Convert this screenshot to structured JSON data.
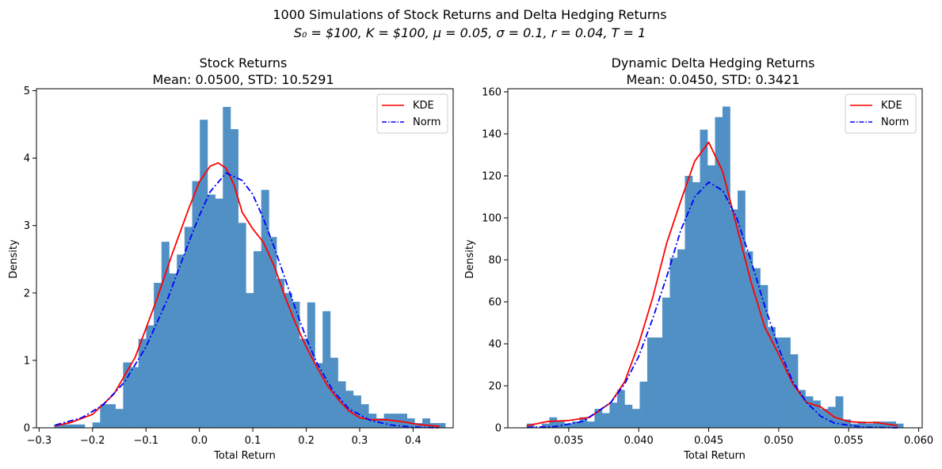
{
  "figure": {
    "suptitle_line1": "1000 Simulations of Stock Returns and Delta Hedging Returns",
    "suptitle_line2": "S₀ = $100, K = $100, μ = 0.05, σ = 0.1, r = 0.04, T = 1"
  },
  "colors": {
    "bars": "#4c8ec3",
    "kde": "#ff0000",
    "norm": "#0000ff"
  },
  "chart_data": [
    {
      "type": "bar",
      "title_line1": "Stock Returns",
      "title_line2": "Mean: 0.0500, STD: 10.5291",
      "xlabel": "Total Return",
      "ylabel": "Density",
      "xlim": [
        -0.305,
        0.475
      ],
      "ylim": [
        0,
        5.03
      ],
      "xticks": [
        -0.3,
        -0.2,
        -0.1,
        0.0,
        0.1,
        0.2,
        0.3,
        0.4
      ],
      "xtick_labels": [
        "−0.3",
        "−0.2",
        "−0.1",
        "0.0",
        "0.1",
        "0.2",
        "0.3",
        "0.4"
      ],
      "yticks": [
        0,
        1,
        2,
        3,
        4,
        5
      ],
      "ytick_labels": [
        "0",
        "1",
        "2",
        "3",
        "4",
        "5"
      ],
      "legend": [
        "KDE",
        "Norm"
      ],
      "legend_position": "top-right",
      "histogram": {
        "bin_start": -0.272,
        "bin_width": 0.01436,
        "values": [
          0.05,
          0.05,
          0.05,
          0.05,
          0.0,
          0.08,
          0.35,
          0.35,
          0.28,
          0.97,
          0.9,
          1.32,
          1.52,
          2.15,
          2.76,
          2.29,
          2.57,
          2.98,
          3.66,
          4.57,
          3.46,
          3.4,
          4.76,
          4.43,
          3.04,
          2.0,
          2.62,
          3.53,
          2.83,
          2.21,
          2.0,
          1.87,
          1.32,
          1.86,
          0.96,
          1.73,
          1.04,
          0.69,
          0.55,
          0.48,
          0.35,
          0.21,
          0.14,
          0.21,
          0.21,
          0.21,
          0.14,
          0.07,
          0.14,
          0.07,
          0.07
        ]
      },
      "series": [
        {
          "name": "KDE",
          "style": "solid",
          "x": [
            -0.27,
            -0.24,
            -0.2,
            -0.16,
            -0.12,
            -0.08,
            -0.05,
            -0.02,
            0.0,
            0.02,
            0.035,
            0.05,
            0.065,
            0.08,
            0.1,
            0.12,
            0.14,
            0.16,
            0.18,
            0.2,
            0.22,
            0.24,
            0.26,
            0.28,
            0.3,
            0.32,
            0.35,
            0.38,
            0.41,
            0.45
          ],
          "y": [
            0.03,
            0.08,
            0.2,
            0.5,
            1.05,
            1.9,
            2.6,
            3.25,
            3.65,
            3.88,
            3.93,
            3.85,
            3.6,
            3.2,
            2.95,
            2.75,
            2.4,
            1.95,
            1.55,
            1.2,
            0.9,
            0.62,
            0.42,
            0.25,
            0.15,
            0.12,
            0.12,
            0.09,
            0.05,
            0.02
          ]
        },
        {
          "name": "Norm",
          "style": "dashdot",
          "x": [
            -0.27,
            -0.22,
            -0.18,
            -0.14,
            -0.1,
            -0.06,
            -0.02,
            0.0,
            0.02,
            0.05,
            0.08,
            0.1,
            0.12,
            0.14,
            0.16,
            0.18,
            0.2,
            0.22,
            0.25,
            0.28,
            0.32,
            0.36,
            0.4,
            0.45
          ],
          "y": [
            0.04,
            0.15,
            0.34,
            0.68,
            1.2,
            1.9,
            2.75,
            3.15,
            3.5,
            3.78,
            3.67,
            3.46,
            3.1,
            2.68,
            2.22,
            1.76,
            1.33,
            0.96,
            0.55,
            0.28,
            0.11,
            0.04,
            0.01,
            0.0
          ]
        }
      ]
    },
    {
      "type": "bar",
      "title_line1": "Dynamic Delta Hedging Returns",
      "title_line2": "Mean: 0.0450, STD: 0.3421",
      "xlabel": "Total Return",
      "ylabel": "Density",
      "xlim": [
        0.03065,
        0.06025
      ],
      "ylim": [
        0,
        161.5
      ],
      "xticks": [
        0.035,
        0.04,
        0.045,
        0.05,
        0.055,
        0.06
      ],
      "xtick_labels": [
        "0.035",
        "0.040",
        "0.045",
        "0.050",
        "0.055",
        "0.060"
      ],
      "yticks": [
        0,
        20,
        40,
        60,
        80,
        100,
        120,
        140,
        160
      ],
      "ytick_labels": [
        "0",
        "20",
        "40",
        "60",
        "80",
        "100",
        "120",
        "140",
        "160"
      ],
      "legend": [
        "KDE",
        "Norm"
      ],
      "legend_position": "top-right",
      "histogram": {
        "bin_start": 0.032,
        "bin_width": 0.000538,
        "values": [
          2,
          0,
          2,
          5,
          3,
          2,
          3,
          5,
          3,
          9,
          7,
          12,
          18,
          11,
          9,
          22,
          43,
          43,
          62,
          81,
          85,
          120,
          117,
          142,
          125,
          148,
          153,
          104,
          113,
          84,
          76,
          68,
          48,
          43,
          43,
          35,
          18,
          15,
          13,
          9,
          10,
          15,
          4,
          2,
          3,
          2,
          3,
          3,
          3,
          2
        ]
      },
      "series": [
        {
          "name": "KDE",
          "style": "solid",
          "x": [
            0.032,
            0.0335,
            0.035,
            0.0365,
            0.038,
            0.039,
            0.04,
            0.041,
            0.042,
            0.043,
            0.044,
            0.045,
            0.046,
            0.047,
            0.048,
            0.049,
            0.05,
            0.051,
            0.052,
            0.053,
            0.054,
            0.055,
            0.056,
            0.057,
            0.0585
          ],
          "y": [
            1,
            3,
            3.5,
            5,
            12,
            22,
            40,
            62,
            88,
            108,
            127,
            136,
            122,
            96,
            70,
            48,
            35,
            21,
            12,
            10,
            5,
            3,
            2.5,
            2.5,
            1
          ]
        },
        {
          "name": "Norm",
          "style": "dashdot",
          "x": [
            0.032,
            0.034,
            0.036,
            0.038,
            0.039,
            0.04,
            0.041,
            0.042,
            0.043,
            0.044,
            0.045,
            0.046,
            0.047,
            0.048,
            0.049,
            0.05,
            0.051,
            0.052,
            0.053,
            0.054,
            0.056,
            0.0585
          ],
          "y": [
            0.2,
            0.6,
            3,
            12,
            21,
            34,
            52,
            72,
            94,
            110,
            117,
            113,
            100,
            80,
            58,
            38,
            22,
            12,
            5.5,
            2.2,
            0.3,
            0.0
          ]
        }
      ]
    }
  ]
}
